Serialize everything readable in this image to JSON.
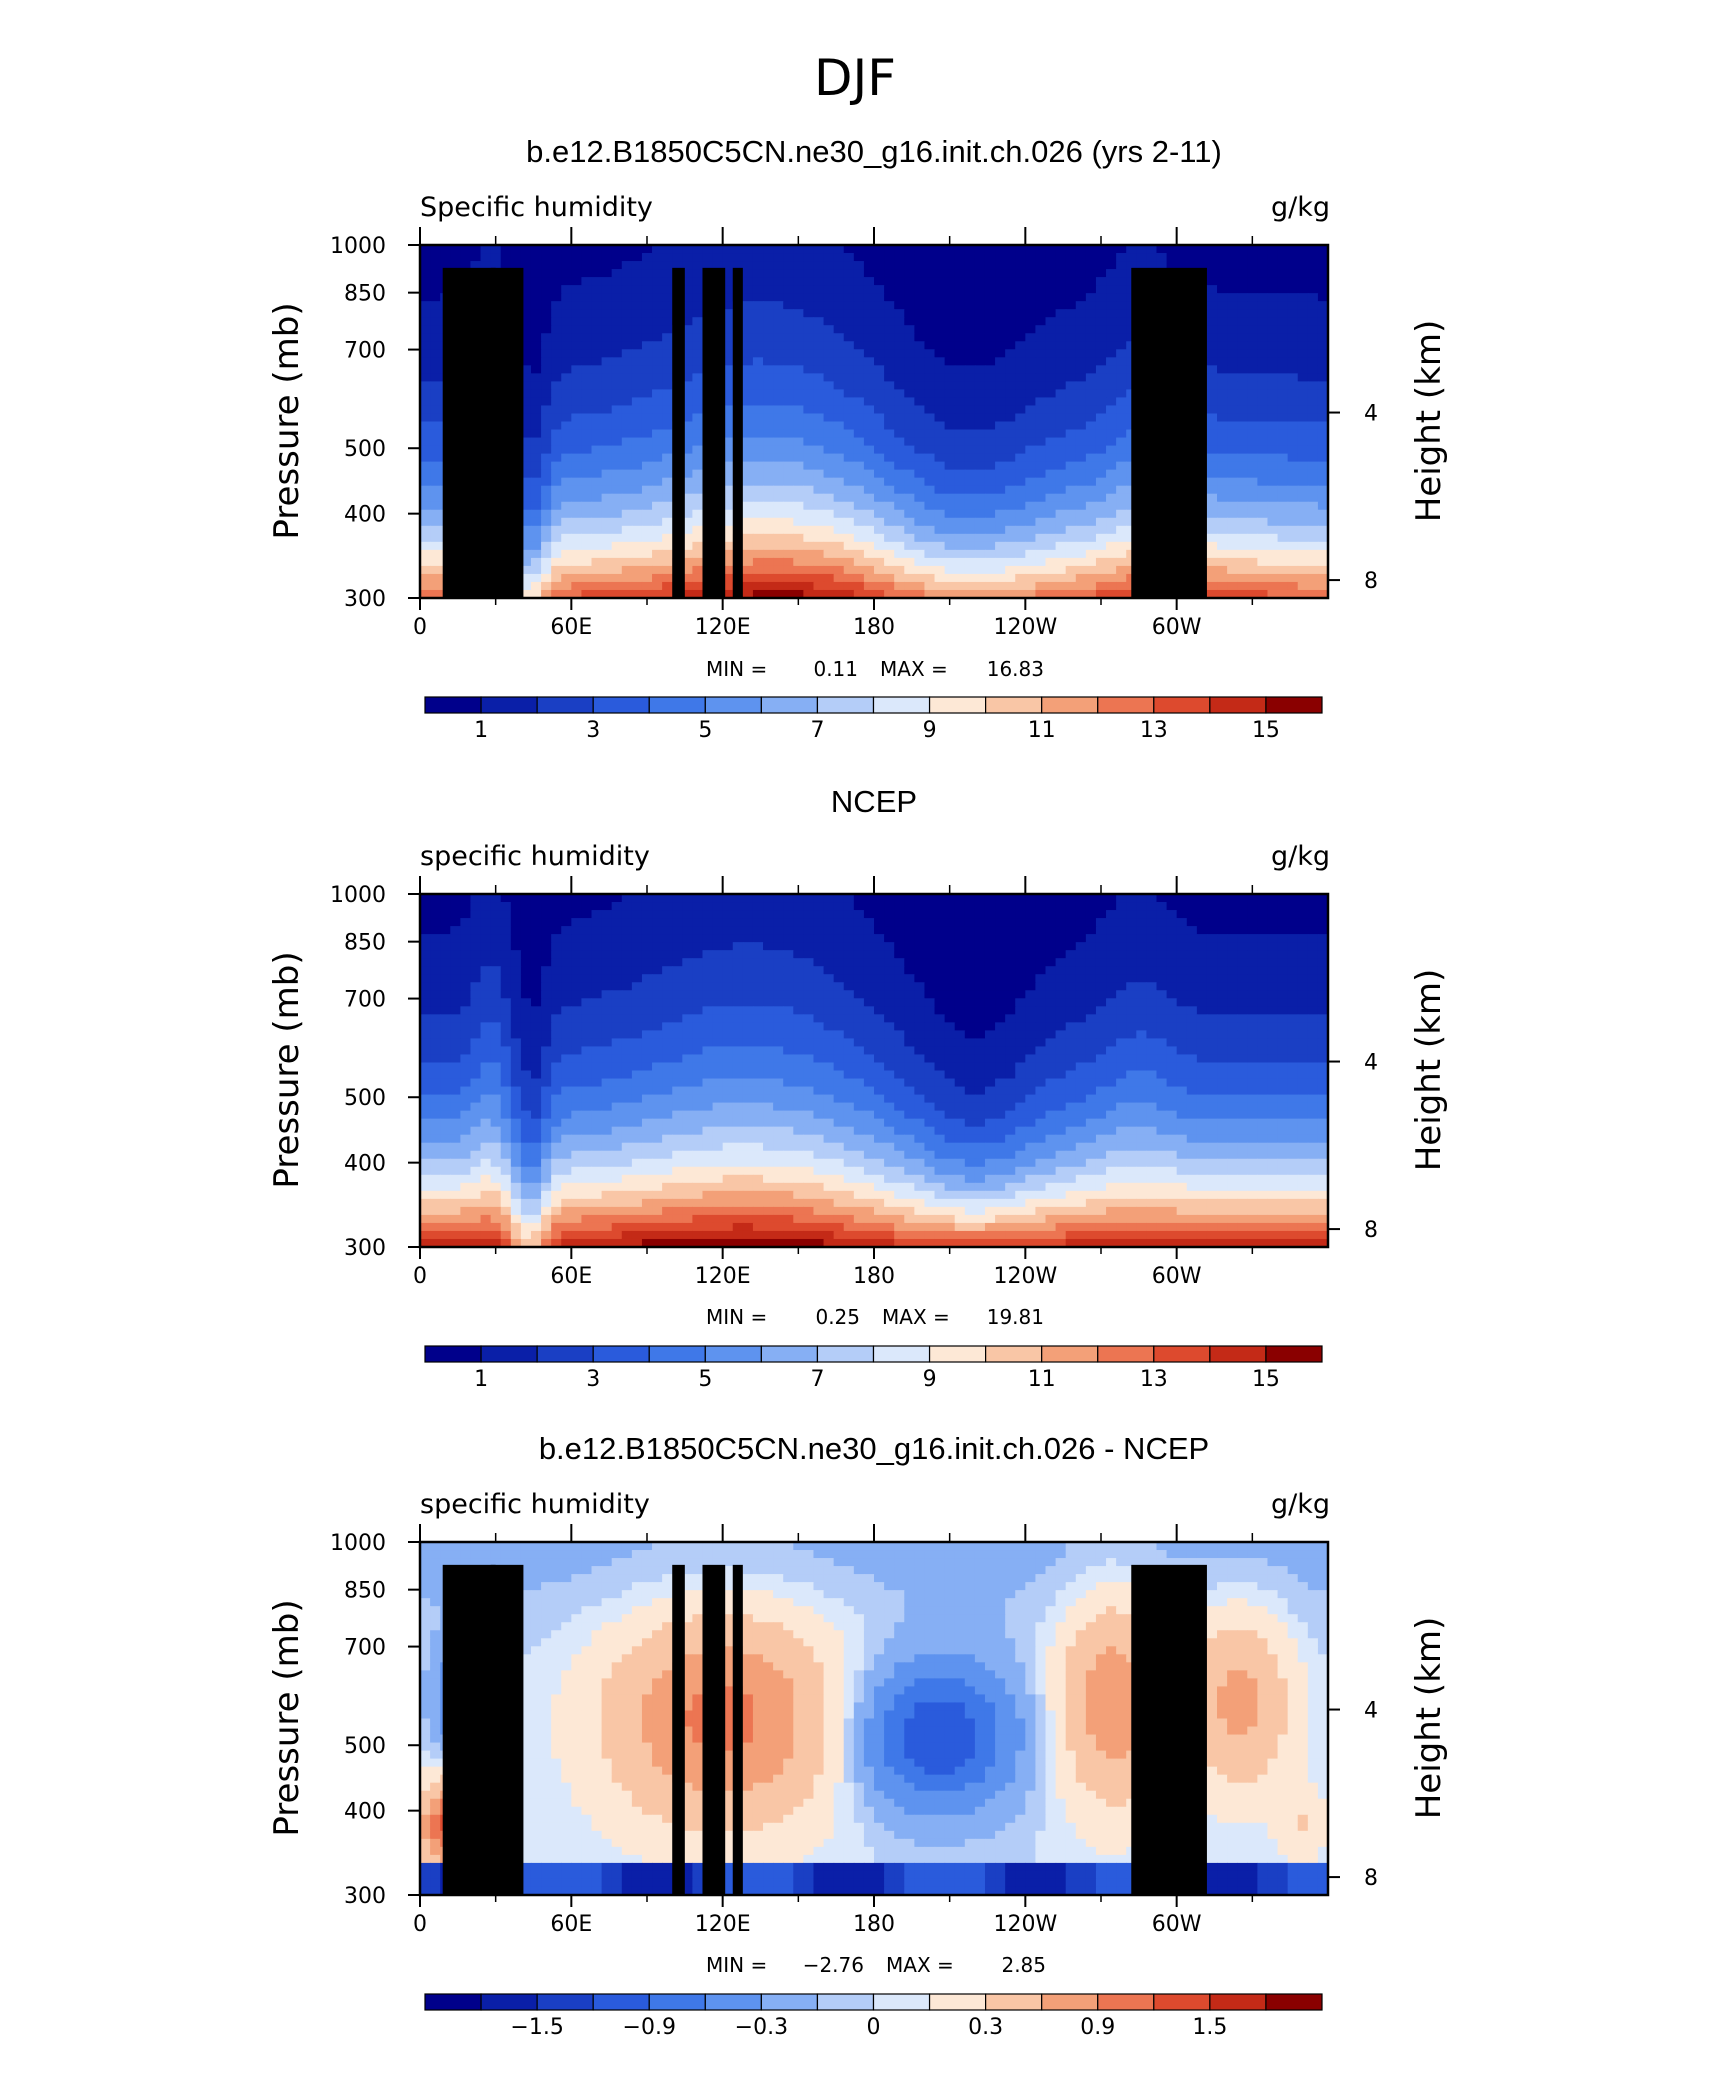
{
  "figure_title": "DJF",
  "chart_data": [
    {
      "type": "heatmap",
      "title": "b.e12.B1850C5CN.ne30_g16.init.ch.026 (yrs 2-11)",
      "variable_label": "Specific humidity",
      "units_label": "g/kg",
      "ylabel": "Pressure (mb)",
      "y2label": "Height (km)",
      "x_ticks": [
        "0",
        "60E",
        "120E",
        "180",
        "120W",
        "60W"
      ],
      "x_tick_lons": [
        0,
        60,
        120,
        180,
        240,
        300
      ],
      "y_ticks": [
        "300",
        "400",
        "500",
        "700",
        "850",
        "1000"
      ],
      "y_tick_values": [
        300,
        400,
        500,
        700,
        850,
        1000
      ],
      "y2_ticks": [
        "8",
        "4"
      ],
      "y2_tick_values": [
        8,
        4
      ],
      "x_range": [
        0,
        360
      ],
      "y_range": [
        1000,
        300
      ],
      "min_label": "MIN =",
      "min_value": "0.11",
      "max_label": "MAX =",
      "max_value": "16.83",
      "colorbar_labels": [
        "1",
        "3",
        "5",
        "7",
        "9",
        "11",
        "13",
        "15"
      ],
      "colorbar_levels": [
        1,
        2,
        3,
        4,
        5,
        6,
        7,
        8,
        9,
        10,
        11,
        12,
        13,
        14,
        15
      ],
      "topography_masked": true,
      "colormap": "blue-white-red (16 levels)"
    },
    {
      "type": "heatmap",
      "title": "NCEP",
      "variable_label": "specific humidity",
      "units_label": "g/kg",
      "ylabel": "Pressure (mb)",
      "y2label": "Height (km)",
      "x_ticks": [
        "0",
        "60E",
        "120E",
        "180",
        "120W",
        "60W"
      ],
      "x_tick_lons": [
        0,
        60,
        120,
        180,
        240,
        300
      ],
      "y_ticks": [
        "300",
        "400",
        "500",
        "700",
        "850",
        "1000"
      ],
      "y_tick_values": [
        300,
        400,
        500,
        700,
        850,
        1000
      ],
      "y2_ticks": [
        "8",
        "4"
      ],
      "y2_tick_values": [
        8,
        4
      ],
      "x_range": [
        0,
        360
      ],
      "y_range": [
        1000,
        300
      ],
      "min_label": "MIN =",
      "min_value": "0.25",
      "max_label": "MAX =",
      "max_value": "19.81",
      "colorbar_labels": [
        "1",
        "3",
        "5",
        "7",
        "9",
        "11",
        "13",
        "15"
      ],
      "colorbar_levels": [
        1,
        2,
        3,
        4,
        5,
        6,
        7,
        8,
        9,
        10,
        11,
        12,
        13,
        14,
        15
      ],
      "topography_masked": false,
      "colormap": "blue-white-red (16 levels)"
    },
    {
      "type": "heatmap",
      "title": "b.e12.B1850C5CN.ne30_g16.init.ch.026 - NCEP",
      "variable_label": "specific humidity",
      "units_label": "g/kg",
      "ylabel": "Pressure (mb)",
      "y2label": "Height (km)",
      "x_ticks": [
        "0",
        "60E",
        "120E",
        "180",
        "120W",
        "60W"
      ],
      "x_tick_lons": [
        0,
        60,
        120,
        180,
        240,
        300
      ],
      "y_ticks": [
        "300",
        "400",
        "500",
        "700",
        "850",
        "1000"
      ],
      "y_tick_values": [
        300,
        400,
        500,
        700,
        850,
        1000
      ],
      "y2_ticks": [
        "8",
        "4"
      ],
      "y2_tick_values": [
        8,
        4
      ],
      "x_range": [
        0,
        360
      ],
      "y_range": [
        1000,
        300
      ],
      "min_label": "MIN =",
      "min_value": "−2.76",
      "max_label": "MAX =",
      "max_value": "2.85",
      "colorbar_labels": [
        "−1.5",
        "−0.9",
        "−0.3",
        "0",
        "0.3",
        "0.9",
        "1.5"
      ],
      "colorbar_levels": [
        -1.8,
        -1.5,
        -1.2,
        -0.9,
        -0.6,
        -0.3,
        -0.1,
        0,
        0.1,
        0.3,
        0.6,
        0.9,
        1.2,
        1.5,
        1.8
      ],
      "topography_masked": true,
      "colormap": "blue-white-red (16 levels)"
    }
  ],
  "palette": [
    "#00008b",
    "#0a1fa8",
    "#1a3fc4",
    "#2a5bdc",
    "#3f78e8",
    "#5e93ef",
    "#86aff4",
    "#b4cdf8",
    "#dbe8fb",
    "#fde8d6",
    "#f9c6a6",
    "#f3a078",
    "#ec7552",
    "#dd4a2e",
    "#c42a17",
    "#8a0000"
  ]
}
